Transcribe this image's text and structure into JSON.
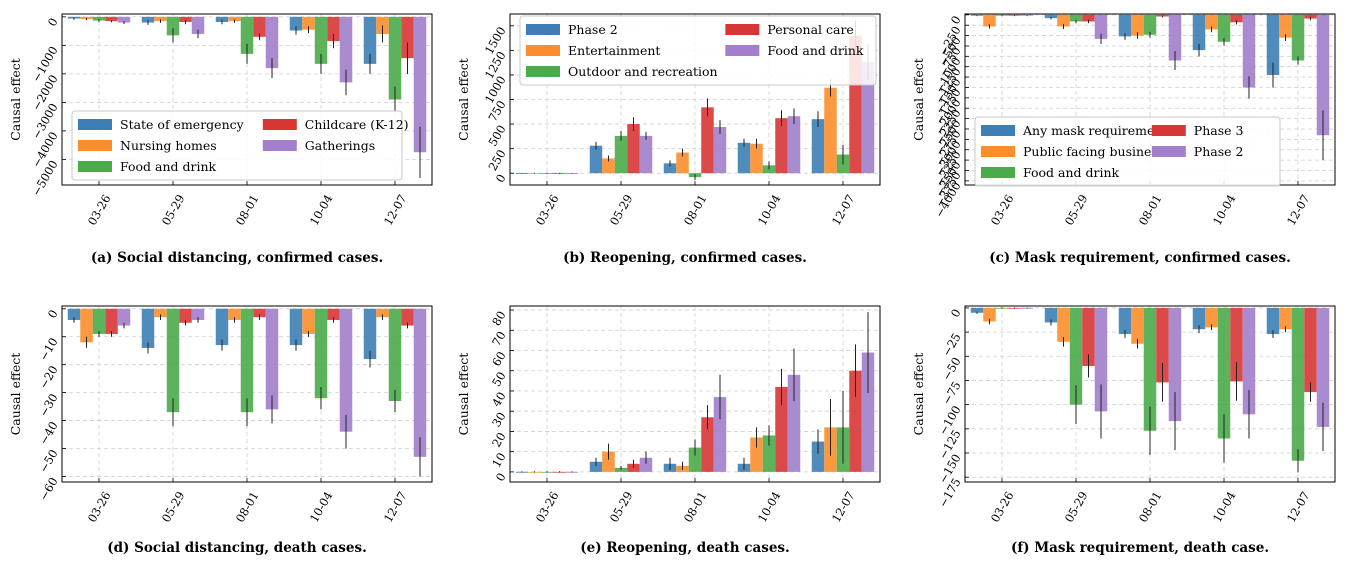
{
  "colors": {
    "blue": "#3d7fb4",
    "orange": "#f98e2b",
    "green": "#4aab4a",
    "red": "#d83535",
    "purple": "#a27ecb"
  },
  "chart_data": [
    {
      "type": "bar",
      "caption": "(a) Social distancing, confirmed cases.",
      "ylabel": "Causal effect",
      "categories": [
        "03-26",
        "05-29",
        "08-01",
        "10-04",
        "12-07"
      ],
      "ylim": [
        -5900,
        100
      ],
      "yticks": [
        0,
        -1000,
        -2000,
        -3000,
        -4000,
        -5000
      ],
      "ytick_labels": [
        "0",
        "−1000",
        "−2000",
        "−3000",
        "−4000",
        "−5000"
      ],
      "legend_position": "lower-left",
      "legend_columns": 2,
      "series": [
        {
          "name": "State of emergency",
          "color": "blue",
          "values": [
            -60,
            -200,
            -180,
            -480,
            -1650
          ],
          "errors": [
            40,
            80,
            80,
            150,
            350
          ]
        },
        {
          "name": "Nursing homes",
          "color": "orange",
          "values": [
            -80,
            -150,
            -150,
            -450,
            -600
          ],
          "errors": [
            40,
            60,
            60,
            120,
            300
          ]
        },
        {
          "name": "Food and drink",
          "color": "green",
          "values": [
            -130,
            -650,
            -1300,
            -1650,
            -2900
          ],
          "errors": [
            50,
            250,
            350,
            350,
            450
          ]
        },
        {
          "name": "Childcare (K-12)",
          "color": "red",
          "values": [
            -150,
            -180,
            -700,
            -850,
            -1450
          ],
          "errors": [
            40,
            80,
            120,
            250,
            550
          ]
        },
        {
          "name": "Gatherings",
          "color": "purple",
          "values": [
            -200,
            -600,
            -1800,
            -2300,
            -4750
          ],
          "errors": [
            50,
            150,
            350,
            450,
            900
          ]
        }
      ]
    },
    {
      "type": "bar",
      "caption": "(b) Reopening, confirmed cases.",
      "ylabel": "Causal effect",
      "categories": [
        "03-26",
        "05-29",
        "08-01",
        "10-04",
        "12-07"
      ],
      "ylim": [
        -120,
        1620
      ],
      "yticks": [
        0,
        250,
        500,
        750,
        1000,
        1250,
        1500
      ],
      "ytick_labels": [
        "0",
        "250",
        "500",
        "750",
        "1000",
        "1250",
        "1500"
      ],
      "legend_position": "upper-left",
      "legend_columns": 2,
      "series": [
        {
          "name": "Phase 2",
          "color": "blue",
          "values": [
            0,
            280,
            100,
            310,
            550
          ],
          "errors": [
            3,
            40,
            30,
            40,
            80
          ]
        },
        {
          "name": "Entertainment",
          "color": "orange",
          "values": [
            0,
            150,
            210,
            300,
            870
          ],
          "errors": [
            3,
            30,
            40,
            50,
            90
          ]
        },
        {
          "name": "Outdoor and recreation",
          "color": "green",
          "values": [
            0,
            380,
            -40,
            80,
            190
          ],
          "errors": [
            3,
            50,
            30,
            40,
            100
          ]
        },
        {
          "name": "Personal care",
          "color": "red",
          "values": [
            0,
            500,
            670,
            560,
            1400
          ],
          "errors": [
            3,
            70,
            90,
            80,
            150
          ]
        },
        {
          "name": "Food and drink",
          "color": "purple",
          "values": [
            0,
            380,
            470,
            580,
            1130
          ],
          "errors": [
            3,
            40,
            70,
            80,
            180
          ]
        }
      ]
    },
    {
      "type": "bar",
      "caption": "(c) Mask requirement, confirmed cases.",
      "ylabel": "Causal effect",
      "categories": [
        "03-26",
        "05-29",
        "08-01",
        "10-04",
        "12-07"
      ],
      "ylim": [
        -4100,
        20
      ],
      "yticks": [
        0,
        -250,
        -500,
        -750,
        -1000,
        -1250,
        -1500,
        -1750,
        -2000,
        -2250,
        -2500,
        -2750,
        -3000,
        -3250,
        -3500,
        -3750,
        -4000
      ],
      "ytick_labels": [
        "0",
        "−250",
        "−500",
        "−750",
        "−1000",
        "−1250",
        "−1500",
        "−1750",
        "−2000",
        "−2250",
        "−2500",
        "−2750",
        "−3000",
        "−3250",
        "−3500",
        "−3750",
        "−4000"
      ],
      "legend_position": "lower-left",
      "legend_columns": 2,
      "series": [
        {
          "name": "Any mask requirement",
          "color": "blue",
          "values": [
            -20,
            -80,
            -520,
            -850,
            -1450
          ],
          "errors": [
            10,
            30,
            80,
            150,
            300
          ]
        },
        {
          "name": "Public facing businesses",
          "color": "orange",
          "values": [
            -280,
            -280,
            -500,
            -350,
            -550
          ],
          "errors": [
            50,
            60,
            80,
            70,
            80
          ]
        },
        {
          "name": "Food and drink",
          "color": "green",
          "values": [
            -20,
            -160,
            -480,
            -650,
            -1100
          ],
          "errors": [
            10,
            40,
            70,
            90,
            100
          ]
        },
        {
          "name": "Phase 3",
          "color": "red",
          "values": [
            -20,
            -160,
            -40,
            -180,
            -90
          ],
          "errors": [
            10,
            40,
            20,
            50,
            40
          ]
        },
        {
          "name": "Phase 2",
          "color": "purple",
          "values": [
            -20,
            -580,
            -1100,
            -1750,
            -2900
          ],
          "errors": [
            10,
            120,
            230,
            270,
            600
          ]
        }
      ]
    },
    {
      "type": "bar",
      "caption": "(d) Social distancing, death cases.",
      "ylabel": "Causal effect",
      "categories": [
        "03-26",
        "05-29",
        "08-01",
        "10-04",
        "12-07"
      ],
      "ylim": [
        -62,
        1
      ],
      "yticks": [
        0,
        -10,
        -20,
        -30,
        -40,
        -50,
        -60
      ],
      "ytick_labels": [
        "0",
        "−10",
        "−20",
        "−30",
        "−40",
        "−50",
        "−60"
      ],
      "series": [
        {
          "name": "State of emergency",
          "color": "blue",
          "values": [
            -4,
            -14,
            -13,
            -13,
            -18
          ],
          "errors": [
            1,
            2,
            2,
            2,
            3
          ]
        },
        {
          "name": "Nursing homes",
          "color": "orange",
          "values": [
            -12,
            -3,
            -4,
            -9,
            -3
          ],
          "errors": [
            2,
            1,
            1,
            1,
            1
          ]
        },
        {
          "name": "Food and drink",
          "color": "green",
          "values": [
            -9,
            -37,
            -37,
            -32,
            -33
          ],
          "errors": [
            1,
            5,
            5,
            4,
            4
          ]
        },
        {
          "name": "Childcare (K-12)",
          "color": "red",
          "values": [
            -9,
            -5,
            -3,
            -4,
            -6
          ],
          "errors": [
            1,
            1,
            1,
            1,
            1
          ]
        },
        {
          "name": "Gatherings",
          "color": "purple",
          "values": [
            -6,
            -4,
            -36,
            -44,
            -53
          ],
          "errors": [
            1,
            1,
            5,
            6,
            7
          ]
        }
      ]
    },
    {
      "type": "bar",
      "caption": "(e) Reopening, death cases.",
      "ylabel": "Causal effect",
      "categories": [
        "03-26",
        "05-29",
        "08-01",
        "10-04",
        "12-07"
      ],
      "ylim": [
        -5,
        82
      ],
      "yticks": [
        0,
        10,
        20,
        30,
        40,
        50,
        60,
        70,
        80
      ],
      "ytick_labels": [
        "0",
        "10",
        "20",
        "30",
        "40",
        "50",
        "60",
        "70",
        "80"
      ],
      "series": [
        {
          "name": "Phase 2",
          "color": "blue",
          "values": [
            0,
            5,
            4,
            4,
            15
          ],
          "errors": [
            0.3,
            2,
            3,
            3,
            6
          ]
        },
        {
          "name": "Entertainment",
          "color": "orange",
          "values": [
            0,
            10,
            3,
            17,
            22
          ],
          "errors": [
            0.3,
            4,
            2,
            5,
            14
          ]
        },
        {
          "name": "Outdoor and recreation",
          "color": "green",
          "values": [
            0,
            2,
            12,
            18,
            22
          ],
          "errors": [
            0.3,
            1,
            4,
            5,
            18
          ]
        },
        {
          "name": "Personal care",
          "color": "red",
          "values": [
            0,
            4,
            27,
            42,
            50
          ],
          "errors": [
            0.3,
            2,
            6,
            9,
            13
          ]
        },
        {
          "name": "Food and drink",
          "color": "purple",
          "values": [
            0,
            7,
            37,
            48,
            59
          ],
          "errors": [
            0.3,
            3,
            11,
            13,
            20
          ]
        }
      ]
    },
    {
      "type": "bar",
      "caption": "(f) Mask requirement, death case.",
      "ylabel": "Causal effect",
      "categories": [
        "03-26",
        "05-29",
        "08-01",
        "10-04",
        "12-07"
      ],
      "ylim": [
        -180,
        2
      ],
      "yticks": [
        0,
        -25,
        -50,
        -75,
        -100,
        -125,
        -150,
        -175
      ],
      "ytick_labels": [
        "0",
        "−25",
        "−50",
        "−75",
        "−100",
        "−125",
        "−150",
        "−175"
      ],
      "series": [
        {
          "name": "Any mask requirement",
          "color": "blue",
          "values": [
            -5,
            -15,
            -27,
            -22,
            -27
          ],
          "errors": [
            1,
            3,
            4,
            4,
            4
          ]
        },
        {
          "name": "Public facing businesses",
          "color": "orange",
          "values": [
            -14,
            -35,
            -37,
            -20,
            -22
          ],
          "errors": [
            3,
            5,
            5,
            3,
            3
          ]
        },
        {
          "name": "Food and drink",
          "color": "green",
          "values": [
            0,
            -100,
            -127,
            -135,
            -158
          ],
          "errors": [
            0.5,
            20,
            25,
            25,
            12
          ]
        },
        {
          "name": "Phase 3",
          "color": "red",
          "values": [
            0,
            -60,
            -77,
            -76,
            -87
          ],
          "errors": [
            0.5,
            12,
            20,
            20,
            10
          ]
        },
        {
          "name": "Phase 2",
          "color": "purple",
          "values": [
            0,
            -107,
            -117,
            -110,
            -123
          ],
          "errors": [
            0.5,
            28,
            30,
            25,
            25
          ]
        }
      ]
    }
  ]
}
